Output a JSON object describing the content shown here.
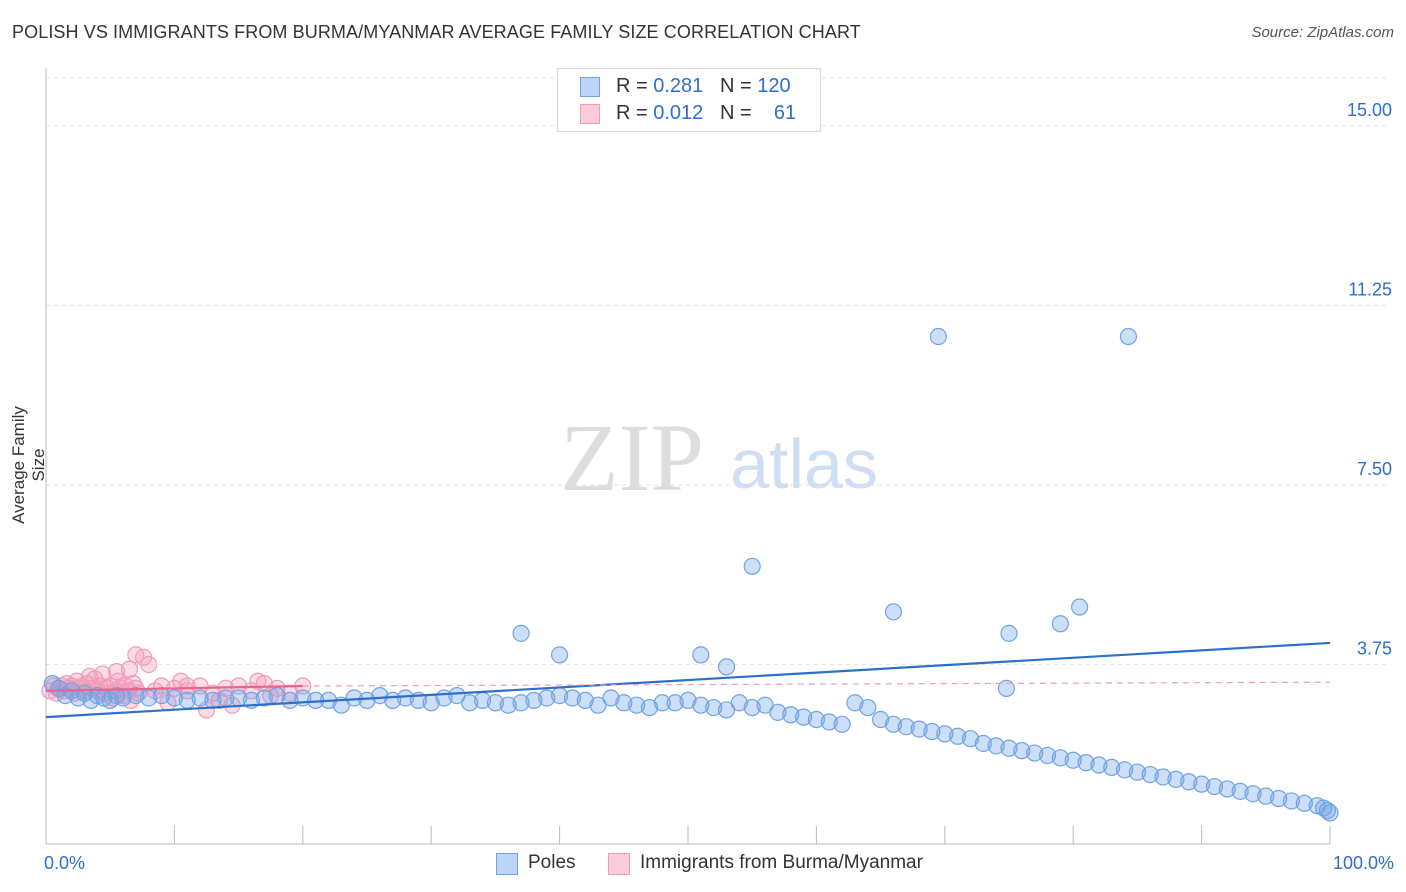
{
  "title": "POLISH VS IMMIGRANTS FROM BURMA/MYANMAR AVERAGE FAMILY SIZE CORRELATION CHART",
  "source": "Source: ZipAtlas.com",
  "watermark": {
    "zip": "ZIP",
    "atlas": "atlas"
  },
  "legend_stats": [
    {
      "r_label": "R =",
      "r_value": "0.281",
      "n_label": "N =",
      "n_value": "120"
    },
    {
      "r_label": "R =",
      "r_value": "0.012",
      "n_label": "N =",
      "n_value": "61"
    }
  ],
  "chart_data": {
    "type": "scatter",
    "title": "POLISH VS IMMIGRANTS FROM BURMA/MYANMAR AVERAGE FAMILY SIZE CORRELATION CHART",
    "xlabel": "",
    "ylabel": "Average Family Size",
    "xlim": [
      0,
      100
    ],
    "ylim": [
      0,
      16
    ],
    "x_tick_labels": [
      "0.0%",
      "100.0%"
    ],
    "y_ticks": [
      3.75,
      7.5,
      11.25,
      15.0
    ],
    "y_tick_labels": [
      "3.75",
      "7.50",
      "11.25",
      "15.00"
    ],
    "grid": true,
    "legend": [
      "Poles",
      "Immigrants from Burma/Myanmar"
    ],
    "colors": {
      "poles": "#6fa3e6",
      "poles_line": "#2e6fc7",
      "burma": "#f19bb8",
      "burma_line": "#e8638f"
    },
    "series": [
      {
        "name": "Poles",
        "r": 0.281,
        "n": 120,
        "trend": [
          [
            0,
            2.65
          ],
          [
            100,
            4.2
          ]
        ],
        "points": [
          [
            0.5,
            3.35
          ],
          [
            1.0,
            3.25
          ],
          [
            1.5,
            3.1
          ],
          [
            2.0,
            3.2
          ],
          [
            2.5,
            3.05
          ],
          [
            3.0,
            3.15
          ],
          [
            3.5,
            3.0
          ],
          [
            4.0,
            3.1
          ],
          [
            4.5,
            3.05
          ],
          [
            5.0,
            3.0
          ],
          [
            5.5,
            3.1
          ],
          [
            6.0,
            3.05
          ],
          [
            7.0,
            3.1
          ],
          [
            8.0,
            3.05
          ],
          [
            9.0,
            3.1
          ],
          [
            10.0,
            3.05
          ],
          [
            11.0,
            3.0
          ],
          [
            12.0,
            3.05
          ],
          [
            13.0,
            3.0
          ],
          [
            14.0,
            3.05
          ],
          [
            15.0,
            3.05
          ],
          [
            16.0,
            3.0
          ],
          [
            17.0,
            3.05
          ],
          [
            18.0,
            3.1
          ],
          [
            19.0,
            3.0
          ],
          [
            20.0,
            3.05
          ],
          [
            21.0,
            3.0
          ],
          [
            22.0,
            3.0
          ],
          [
            23.0,
            2.9
          ],
          [
            24.0,
            3.05
          ],
          [
            25.0,
            3.0
          ],
          [
            26.0,
            3.1
          ],
          [
            27.0,
            3.0
          ],
          [
            28.0,
            3.05
          ],
          [
            29.0,
            3.0
          ],
          [
            30.0,
            2.95
          ],
          [
            31.0,
            3.05
          ],
          [
            32.0,
            3.1
          ],
          [
            33.0,
            2.95
          ],
          [
            34.0,
            3.0
          ],
          [
            35.0,
            2.95
          ],
          [
            36.0,
            2.9
          ],
          [
            37.0,
            2.95
          ],
          [
            38.0,
            3.0
          ],
          [
            39.0,
            3.05
          ],
          [
            40.0,
            3.1
          ],
          [
            41.0,
            3.05
          ],
          [
            42.0,
            3.0
          ],
          [
            43.0,
            2.9
          ],
          [
            44.0,
            3.05
          ],
          [
            45.0,
            2.95
          ],
          [
            46.0,
            2.9
          ],
          [
            47.0,
            2.85
          ],
          [
            48.0,
            2.95
          ],
          [
            49.0,
            2.95
          ],
          [
            50.0,
            3.0
          ],
          [
            51.0,
            2.9
          ],
          [
            52.0,
            2.85
          ],
          [
            53.0,
            2.8
          ],
          [
            54.0,
            2.95
          ],
          [
            55.0,
            2.85
          ],
          [
            56.0,
            2.9
          ],
          [
            57.0,
            2.75
          ],
          [
            58.0,
            2.7
          ],
          [
            59.0,
            2.65
          ],
          [
            60.0,
            2.6
          ],
          [
            61.0,
            2.55
          ],
          [
            62.0,
            2.5
          ],
          [
            63.0,
            2.95
          ],
          [
            64.0,
            2.85
          ],
          [
            65.0,
            2.6
          ],
          [
            66.0,
            2.5
          ],
          [
            67.0,
            2.45
          ],
          [
            68.0,
            2.4
          ],
          [
            69.0,
            2.35
          ],
          [
            70.0,
            2.3
          ],
          [
            71.0,
            2.25
          ],
          [
            72.0,
            2.2
          ],
          [
            73.0,
            2.1
          ],
          [
            74.0,
            2.05
          ],
          [
            75.0,
            2.0
          ],
          [
            76.0,
            1.95
          ],
          [
            77.0,
            1.9
          ],
          [
            78.0,
            1.85
          ],
          [
            79.0,
            1.8
          ],
          [
            80.0,
            1.75
          ],
          [
            81.0,
            1.7
          ],
          [
            82.0,
            1.65
          ],
          [
            83.0,
            1.6
          ],
          [
            84.0,
            1.55
          ],
          [
            85.0,
            1.5
          ],
          [
            86.0,
            1.45
          ],
          [
            87.0,
            1.4
          ],
          [
            88.0,
            1.35
          ],
          [
            89.0,
            1.3
          ],
          [
            90.0,
            1.25
          ],
          [
            91.0,
            1.2
          ],
          [
            92.0,
            1.15
          ],
          [
            93.0,
            1.1
          ],
          [
            94.0,
            1.05
          ],
          [
            95.0,
            1.0
          ],
          [
            96.0,
            0.95
          ],
          [
            97.0,
            0.9
          ],
          [
            98.0,
            0.85
          ],
          [
            99.0,
            0.8
          ],
          [
            99.5,
            0.75
          ],
          [
            99.8,
            0.7
          ],
          [
            100.0,
            0.65
          ],
          [
            69.5,
            10.6
          ],
          [
            84.3,
            10.6
          ],
          [
            55.0,
            5.8
          ],
          [
            66.0,
            4.85
          ],
          [
            75.0,
            4.4
          ],
          [
            79.0,
            4.6
          ],
          [
            80.5,
            4.95
          ],
          [
            74.8,
            3.25
          ],
          [
            37.0,
            4.4
          ],
          [
            40.0,
            3.95
          ],
          [
            51.0,
            3.95
          ],
          [
            53.0,
            3.7
          ]
        ]
      },
      {
        "name": "Immigrants from Burma/Myanmar",
        "r": 0.012,
        "n": 61,
        "trend": [
          [
            0,
            3.2
          ],
          [
            20,
            3.3
          ]
        ],
        "points": [
          [
            0.3,
            3.2
          ],
          [
            0.6,
            3.3
          ],
          [
            0.8,
            3.15
          ],
          [
            1.0,
            3.25
          ],
          [
            1.2,
            3.3
          ],
          [
            1.4,
            3.2
          ],
          [
            1.6,
            3.35
          ],
          [
            1.8,
            3.25
          ],
          [
            2.0,
            3.3
          ],
          [
            2.2,
            3.15
          ],
          [
            2.4,
            3.4
          ],
          [
            2.6,
            3.25
          ],
          [
            2.8,
            3.3
          ],
          [
            3.0,
            3.2
          ],
          [
            3.2,
            3.35
          ],
          [
            3.4,
            3.5
          ],
          [
            3.6,
            3.25
          ],
          [
            3.8,
            3.45
          ],
          [
            4.0,
            3.2
          ],
          [
            4.2,
            3.3
          ],
          [
            4.4,
            3.55
          ],
          [
            4.6,
            3.15
          ],
          [
            4.8,
            3.25
          ],
          [
            5.0,
            3.3
          ],
          [
            5.2,
            3.05
          ],
          [
            5.4,
            3.2
          ],
          [
            5.6,
            3.4
          ],
          [
            5.8,
            3.25
          ],
          [
            6.0,
            3.1
          ],
          [
            6.2,
            3.3
          ],
          [
            6.4,
            3.2
          ],
          [
            6.6,
            3.0
          ],
          [
            6.8,
            3.35
          ],
          [
            7.0,
            3.25
          ],
          [
            7.2,
            3.15
          ],
          [
            7.6,
            3.9
          ],
          [
            8.0,
            3.75
          ],
          [
            8.5,
            3.2
          ],
          [
            9.0,
            3.3
          ],
          [
            10.0,
            3.25
          ],
          [
            10.5,
            3.4
          ],
          [
            11.0,
            3.2
          ],
          [
            12.0,
            3.3
          ],
          [
            13.0,
            3.15
          ],
          [
            14.0,
            3.25
          ],
          [
            15.0,
            3.3
          ],
          [
            16.0,
            3.2
          ],
          [
            17.0,
            3.35
          ],
          [
            18.0,
            3.25
          ],
          [
            19.0,
            3.15
          ],
          [
            20.0,
            3.3
          ],
          [
            7.0,
            3.95
          ],
          [
            6.5,
            3.65
          ],
          [
            11.0,
            3.3
          ],
          [
            13.5,
            3.0
          ],
          [
            14.5,
            2.9
          ],
          [
            16.5,
            3.4
          ],
          [
            17.5,
            3.1
          ],
          [
            9.5,
            2.95
          ],
          [
            12.5,
            2.8
          ],
          [
            5.5,
            3.6
          ]
        ]
      }
    ]
  },
  "legend_bottom": [
    "Poles",
    "Immigrants from Burma/Myanmar"
  ]
}
